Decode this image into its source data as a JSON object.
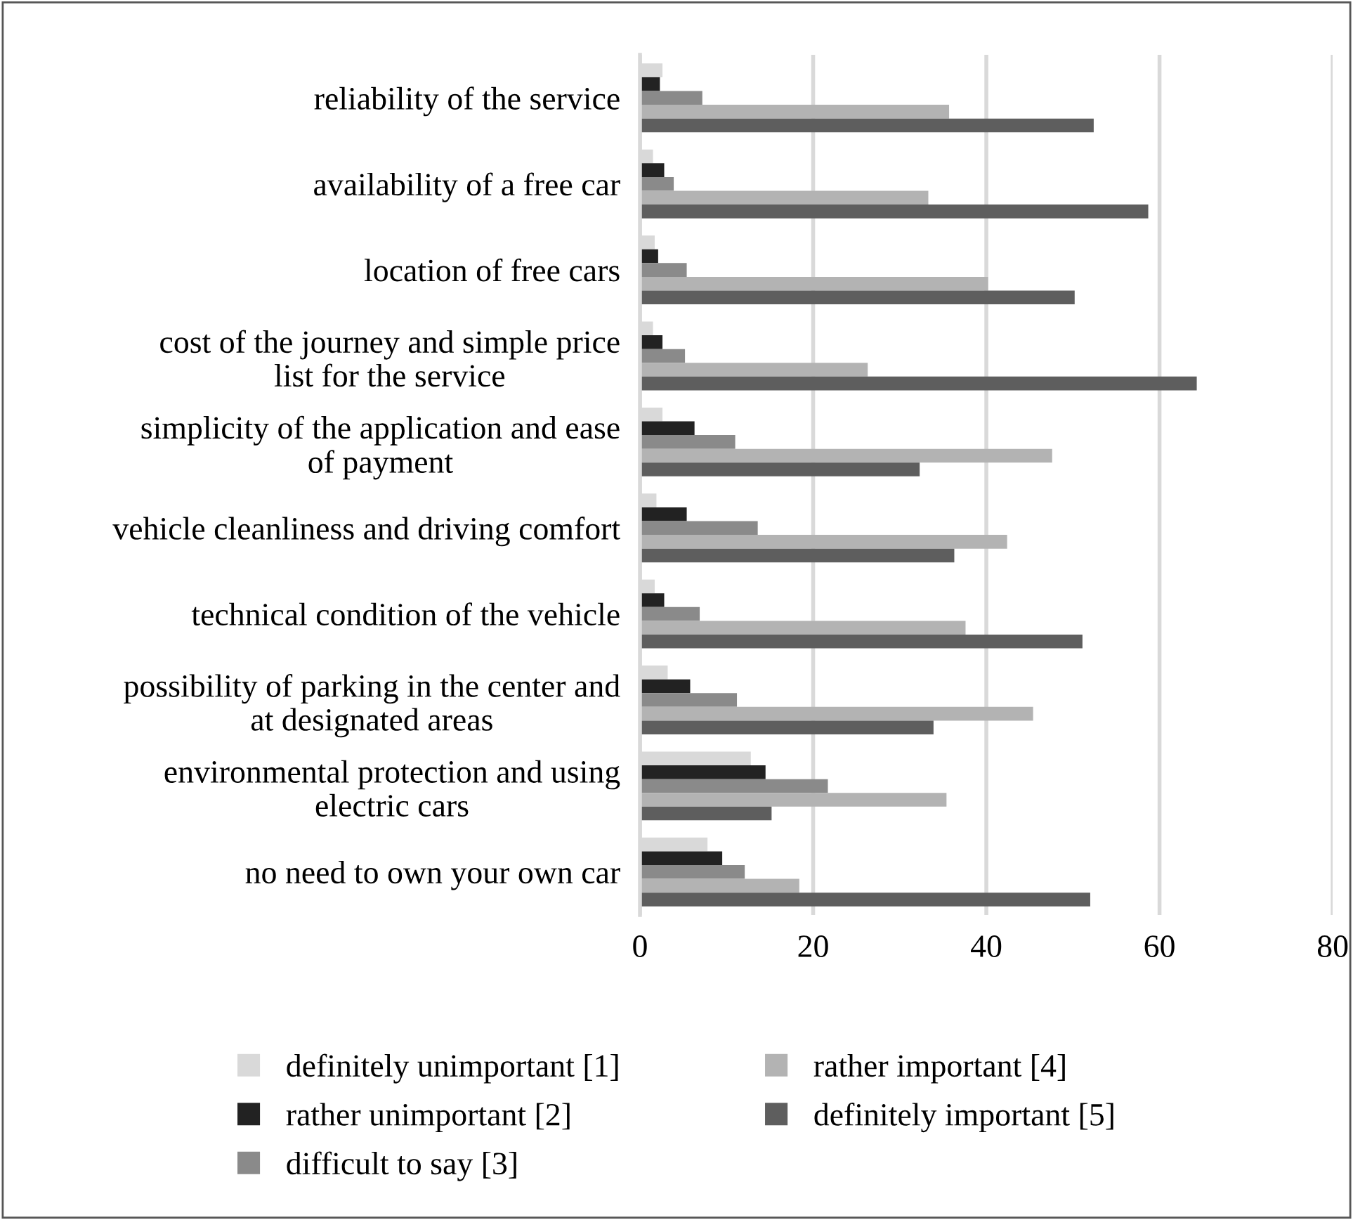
{
  "chart_data": {
    "type": "bar",
    "orientation": "horizontal",
    "categories": [
      "reliability of the service",
      "availability of a free car",
      "location of free cars",
      "cost of the journey and simple price\nlist for the service",
      "simplicity of the application and ease\nof payment",
      "vehicle cleanliness and driving comfort",
      "technical condition of the vehicle",
      "possibility of parking in the center and\nat designated areas",
      "environmental protection and using\nelectric cars",
      "no need to own your own car"
    ],
    "series": [
      {
        "name": "definitely unimportant [1]",
        "color": "#d9d9d9",
        "values": [
          2.6,
          1.5,
          1.7,
          1.5,
          2.6,
          1.9,
          1.7,
          3.2,
          12.8,
          7.8
        ]
      },
      {
        "name": "rather unimportant [2]",
        "color": "#222222",
        "values": [
          2.3,
          2.8,
          2.1,
          2.6,
          6.3,
          5.4,
          2.8,
          5.8,
          14.5,
          9.5
        ]
      },
      {
        "name": "difficult to say [3]",
        "color": "#8a8a8a",
        "values": [
          7.2,
          3.9,
          5.4,
          5.2,
          11.0,
          13.6,
          6.9,
          11.2,
          21.7,
          12.1
        ]
      },
      {
        "name": "rather important [4]",
        "color": "#b3b3b3",
        "values": [
          35.7,
          33.3,
          40.2,
          26.3,
          47.6,
          42.4,
          37.6,
          45.4,
          35.4,
          18.4
        ]
      },
      {
        "name": "definitely important [5]",
        "color": "#5e5e5e",
        "values": [
          52.4,
          58.7,
          50.2,
          64.3,
          32.3,
          36.3,
          51.1,
          33.9,
          15.2,
          52.0
        ]
      }
    ],
    "xlim": [
      0,
      80
    ],
    "xticks": [
      0,
      20,
      40,
      60,
      80
    ],
    "grid": "x",
    "legend": "bottom"
  }
}
